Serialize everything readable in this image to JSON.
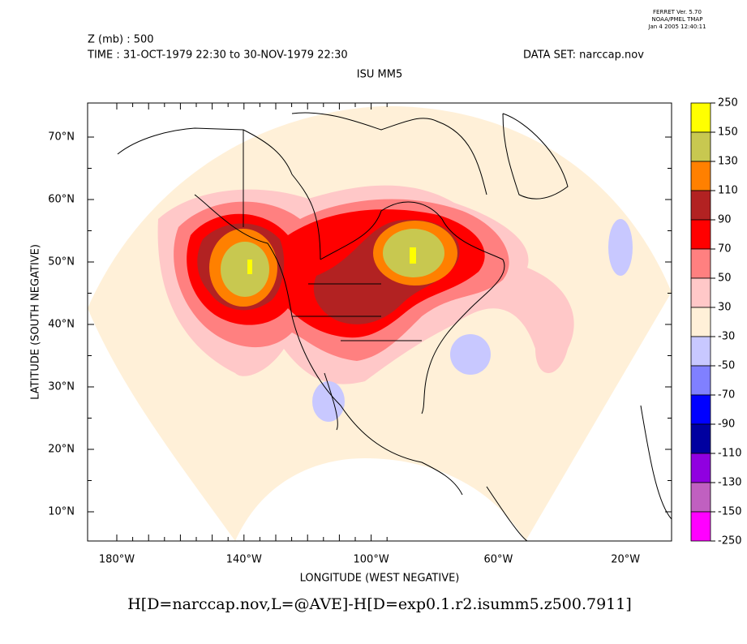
{
  "header": {
    "stamp": [
      "FERRET Ver. 5.70",
      "NOAA/PMEL TMAP",
      "Jan  4 2005 12:40:11"
    ],
    "variable": "Z (mb) : 500",
    "time": "TIME : 31-OCT-1979 22:30 to 30-NOV-1979 22:30",
    "dataset": "DATA SET: narccap.nov",
    "subtitle": "ISU MM5"
  },
  "axes": {
    "x_label": "LONGITUDE (WEST NEGATIVE)",
    "y_label": "LATITUDE (SOUTH NEGATIVE)",
    "x_ticks": [
      "180°W",
      "140°W",
      "100°W",
      "60°W",
      "20°W"
    ],
    "y_ticks": [
      "70°N",
      "60°N",
      "50°N",
      "40°N",
      "30°N",
      "20°N",
      "10°N"
    ]
  },
  "colorbar": {
    "labels": [
      "250",
      "150",
      "130",
      "110",
      "90",
      "70",
      "50",
      "30",
      "-30",
      "-50",
      "-70",
      "-90",
      "-110",
      "-130",
      "-150",
      "-250"
    ],
    "colors": [
      "#ffff00",
      "#c8c850",
      "#ff8000",
      "#b22222",
      "#ff0000",
      "#ff8080",
      "#ffc8c8",
      "#fff0d8",
      "#c8c8ff",
      "#8080ff",
      "#0000ff",
      "#0000a0",
      "#9000e0",
      "#c060c0",
      "#ff00ff"
    ]
  },
  "footer": "H[D=narccap.nov,L=@AVE]-H[D=exp0.1.r2.isumm5.z500.7911]"
}
